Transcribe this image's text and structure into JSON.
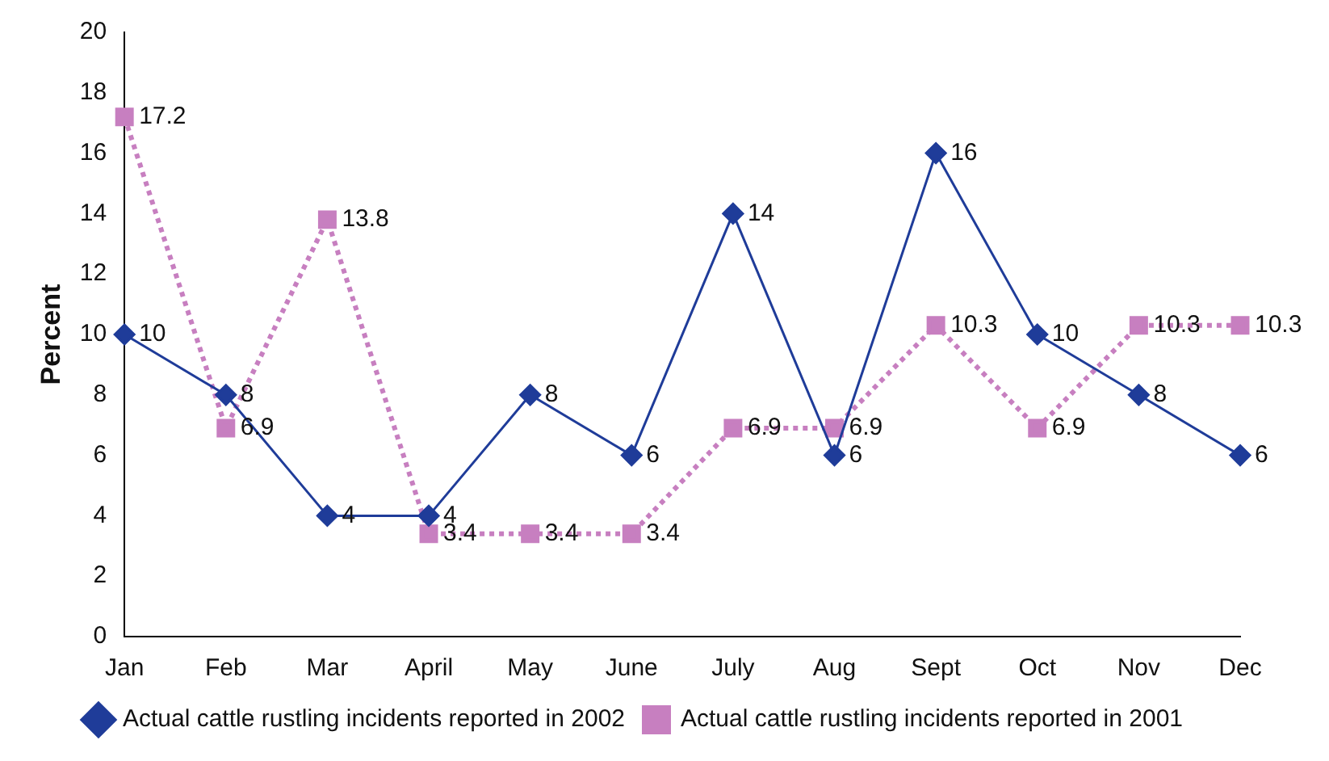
{
  "chart_data": {
    "type": "line",
    "ylabel": "Percent",
    "categories": [
      "Jan",
      "Feb",
      "Mar",
      "April",
      "May",
      "June",
      "July",
      "Aug",
      "Sept",
      "Oct",
      "Nov",
      "Dec"
    ],
    "series": [
      {
        "name": "Actual cattle rustling incidents reported in 2002",
        "color": "#1f3c99",
        "marker": "diamond",
        "line_style": "solid",
        "values": [
          10,
          8,
          4,
          4,
          8,
          6,
          14,
          6,
          16,
          10,
          8,
          6
        ]
      },
      {
        "name": "Actual cattle rustling incidents reported in 2001",
        "color": "#c77fc0",
        "marker": "square",
        "line_style": "dotted",
        "values": [
          17.2,
          6.9,
          13.8,
          3.4,
          3.4,
          3.4,
          6.9,
          6.9,
          10.3,
          6.9,
          10.3,
          10.3
        ]
      }
    ],
    "ylim": [
      0,
      20
    ],
    "yticks": [
      0,
      2,
      4,
      6,
      8,
      10,
      12,
      14,
      16,
      18,
      20
    ],
    "grid": false,
    "legend": "bottom",
    "data_labels": true
  }
}
